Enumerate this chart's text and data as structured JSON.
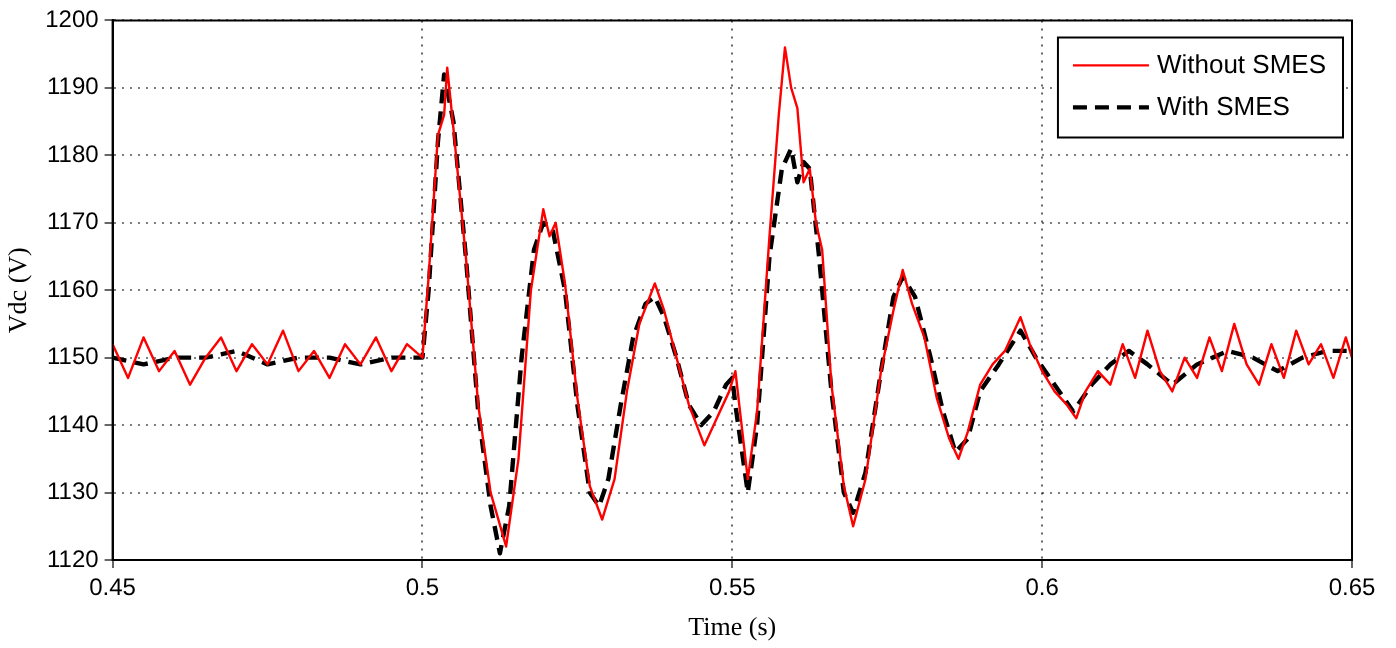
{
  "chart_data": {
    "type": "line",
    "xlabel": "Time (s)",
    "ylabel": "Vdc (V)",
    "xlim": [
      0.45,
      0.65
    ],
    "xticks": [
      0.45,
      0.5,
      0.55,
      0.6,
      0.65
    ],
    "ylim": [
      1120,
      1200
    ],
    "yticks": [
      1120,
      1130,
      1140,
      1150,
      1160,
      1170,
      1180,
      1190,
      1200
    ],
    "grid": true,
    "legend": "top right",
    "marker": "none",
    "series": [
      {
        "name": "Without SMES",
        "color": "#ff0000",
        "line_style": "solid",
        "x": [
          0.45,
          0.4525,
          0.455,
          0.4575,
          0.46,
          0.4625,
          0.465,
          0.4675,
          0.47,
          0.4725,
          0.475,
          0.4775,
          0.48,
          0.4825,
          0.485,
          0.4875,
          0.49,
          0.4925,
          0.495,
          0.4975,
          0.5,
          0.501,
          0.5025,
          0.5035,
          0.504,
          0.505,
          0.507,
          0.509,
          0.511,
          0.5135,
          0.5155,
          0.5175,
          0.5195,
          0.5205,
          0.5215,
          0.523,
          0.525,
          0.527,
          0.529,
          0.531,
          0.533,
          0.535,
          0.5375,
          0.539,
          0.541,
          0.543,
          0.5455,
          0.5475,
          0.5495,
          0.5505,
          0.5515,
          0.5525,
          0.554,
          0.556,
          0.5575,
          0.5585,
          0.5595,
          0.5605,
          0.5615,
          0.5625,
          0.5635,
          0.5645,
          0.566,
          0.568,
          0.5695,
          0.5715,
          0.574,
          0.576,
          0.5775,
          0.579,
          0.581,
          0.583,
          0.585,
          0.5865,
          0.588,
          0.59,
          0.592,
          0.594,
          0.5965,
          0.598,
          0.6,
          0.602,
          0.604,
          0.6055,
          0.607,
          0.609,
          0.611,
          0.613,
          0.615,
          0.617,
          0.619,
          0.621,
          0.623,
          0.625,
          0.627,
          0.629,
          0.631,
          0.633,
          0.635,
          0.637,
          0.639,
          0.641,
          0.643,
          0.645,
          0.647,
          0.649,
          0.65
        ],
        "values": [
          1152,
          1147,
          1153,
          1148,
          1151,
          1146,
          1150,
          1153,
          1148,
          1152,
          1149,
          1154,
          1148,
          1151,
          1147,
          1152,
          1149,
          1153,
          1148,
          1152,
          1150,
          1162,
          1183,
          1186,
          1193,
          1184,
          1165,
          1143,
          1130,
          1122,
          1135,
          1160,
          1172,
          1168,
          1170,
          1161,
          1144,
          1131,
          1126,
          1132,
          1145,
          1155,
          1161,
          1157,
          1150,
          1143,
          1137,
          1141,
          1145,
          1148,
          1140,
          1132,
          1142,
          1168,
          1186,
          1196,
          1190,
          1187,
          1176,
          1178,
          1170,
          1166,
          1146,
          1131,
          1125,
          1132,
          1148,
          1157,
          1163,
          1158,
          1153,
          1144,
          1138,
          1135,
          1139,
          1146,
          1149,
          1151,
          1156,
          1152,
          1148,
          1145,
          1143,
          1141,
          1145,
          1148,
          1146,
          1152,
          1147,
          1154,
          1148,
          1145,
          1150,
          1147,
          1153,
          1148,
          1155,
          1149,
          1146,
          1152,
          1147,
          1154,
          1149,
          1152,
          1147,
          1153,
          1150
        ]
      },
      {
        "name": "With SMES",
        "color": "#000000",
        "line_style": "dashed",
        "x": [
          0.45,
          0.455,
          0.46,
          0.465,
          0.47,
          0.475,
          0.48,
          0.485,
          0.49,
          0.495,
          0.5,
          0.501,
          0.5025,
          0.5035,
          0.505,
          0.507,
          0.509,
          0.511,
          0.5125,
          0.514,
          0.516,
          0.518,
          0.5195,
          0.521,
          0.523,
          0.525,
          0.527,
          0.5285,
          0.53,
          0.532,
          0.534,
          0.536,
          0.5375,
          0.539,
          0.541,
          0.543,
          0.545,
          0.547,
          0.549,
          0.55,
          0.5505,
          0.5525,
          0.554,
          0.556,
          0.558,
          0.5595,
          0.5605,
          0.5615,
          0.5625,
          0.564,
          0.566,
          0.568,
          0.5695,
          0.5715,
          0.574,
          0.576,
          0.5775,
          0.5795,
          0.582,
          0.584,
          0.586,
          0.588,
          0.59,
          0.593,
          0.5965,
          0.599,
          0.602,
          0.605,
          0.608,
          0.611,
          0.614,
          0.617,
          0.621,
          0.625,
          0.63,
          0.634,
          0.638,
          0.642,
          0.646,
          0.65
        ],
        "values": [
          1150,
          1149,
          1150,
          1150,
          1151,
          1149,
          1150,
          1150,
          1149,
          1150,
          1150,
          1160,
          1182,
          1192,
          1185,
          1165,
          1142,
          1128,
          1121,
          1128,
          1150,
          1166,
          1170,
          1169,
          1160,
          1143,
          1130,
          1128,
          1132,
          1143,
          1153,
          1158,
          1159,
          1156,
          1150,
          1143,
          1140,
          1142,
          1146,
          1147,
          1143,
          1130,
          1140,
          1165,
          1178,
          1181,
          1176,
          1179,
          1178,
          1165,
          1145,
          1130,
          1127,
          1133,
          1148,
          1159,
          1162,
          1159,
          1150,
          1142,
          1136,
          1138,
          1145,
          1149,
          1154,
          1150,
          1146,
          1142,
          1146,
          1149,
          1151,
          1149,
          1146,
          1149,
          1151,
          1150,
          1148,
          1150,
          1151,
          1151
        ]
      }
    ]
  }
}
